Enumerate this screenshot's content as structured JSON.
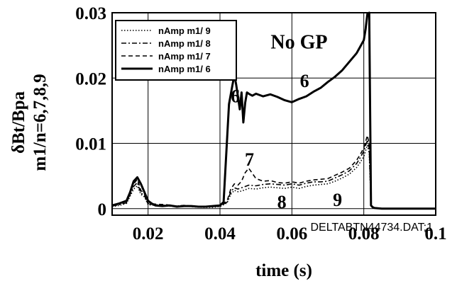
{
  "chart_data": {
    "type": "line",
    "title": "",
    "xlabel": "time (s)",
    "ylabel_lines": [
      "δBt/Bpa",
      "m1/n=6,7,8,9"
    ],
    "xlim": [
      0.01,
      0.1
    ],
    "ylim": [
      -0.001,
      0.03
    ],
    "x_ticks": [
      0.02,
      0.04,
      0.06,
      0.08,
      0.1
    ],
    "x_tick_labels": [
      "0.02",
      "0.04",
      "0.06",
      "0.08",
      "0.1"
    ],
    "y_ticks": [
      0,
      0.01,
      0.02,
      0.03
    ],
    "y_tick_labels": [
      "0",
      "0.01",
      "0.02",
      "0.03"
    ],
    "grid": true,
    "legend_position": "top-left",
    "annotations": [
      {
        "text": "No GP",
        "x": 0.062,
        "y": 0.0245,
        "size": "large"
      },
      {
        "text": "6",
        "x": 0.0635,
        "y": 0.0186
      },
      {
        "text": "6",
        "x": 0.0443,
        "y": 0.0163
      },
      {
        "text": "7",
        "x": 0.0482,
        "y": 0.0066
      },
      {
        "text": "8",
        "x": 0.0572,
        "y": 0.0001
      },
      {
        "text": "9",
        "x": 0.0727,
        "y": 0.0004
      }
    ],
    "footer_label": "DELTABTN44734.DAT;1",
    "series": [
      {
        "name": "nAmp m1/ 9",
        "style": "dotted",
        "x": [
          0.01,
          0.012,
          0.014,
          0.016,
          0.017,
          0.018,
          0.019,
          0.02,
          0.022,
          0.025,
          0.028,
          0.03,
          0.032,
          0.035,
          0.038,
          0.04,
          0.042,
          0.043,
          0.044,
          0.045,
          0.046,
          0.048,
          0.05,
          0.052,
          0.054,
          0.056,
          0.058,
          0.06,
          0.062,
          0.064,
          0.066,
          0.068,
          0.07,
          0.072,
          0.074,
          0.076,
          0.078,
          0.079,
          0.08,
          0.081,
          0.0815,
          0.082,
          0.083,
          0.085,
          0.09,
          0.095,
          0.1
        ],
        "y": [
          0.0003,
          0.0005,
          0.0008,
          0.003,
          0.0035,
          0.0022,
          0.0018,
          0.0006,
          0.0005,
          0.0004,
          0.0003,
          0.0004,
          0.0003,
          0.0002,
          0.0002,
          0.0003,
          0.0009,
          0.0022,
          0.0028,
          0.0026,
          0.0027,
          0.0031,
          0.003,
          0.0032,
          0.0033,
          0.0032,
          0.0031,
          0.0033,
          0.0031,
          0.0034,
          0.0036,
          0.0037,
          0.0038,
          0.0042,
          0.0047,
          0.0053,
          0.0063,
          0.0071,
          0.008,
          0.0097,
          0.0085,
          0.0005,
          0.0001,
          0.0,
          0.0,
          0.0,
          0.0
        ]
      },
      {
        "name": "nAmp m1/ 8",
        "style": "dashdot",
        "x": [
          0.01,
          0.012,
          0.014,
          0.016,
          0.017,
          0.018,
          0.019,
          0.02,
          0.022,
          0.025,
          0.028,
          0.03,
          0.032,
          0.035,
          0.038,
          0.04,
          0.042,
          0.043,
          0.044,
          0.045,
          0.046,
          0.048,
          0.05,
          0.052,
          0.054,
          0.056,
          0.058,
          0.06,
          0.062,
          0.064,
          0.066,
          0.068,
          0.07,
          0.072,
          0.074,
          0.076,
          0.078,
          0.079,
          0.08,
          0.081,
          0.0815,
          0.082,
          0.083,
          0.085,
          0.09,
          0.095,
          0.1
        ],
        "y": [
          0.0004,
          0.0006,
          0.0009,
          0.0034,
          0.004,
          0.0024,
          0.002,
          0.0007,
          0.0006,
          0.0005,
          0.0004,
          0.0005,
          0.0003,
          0.0003,
          0.0003,
          0.0004,
          0.001,
          0.0026,
          0.0032,
          0.003,
          0.0032,
          0.0036,
          0.0035,
          0.0037,
          0.0038,
          0.0037,
          0.0036,
          0.0038,
          0.0036,
          0.0039,
          0.0041,
          0.0041,
          0.0042,
          0.0047,
          0.0052,
          0.0058,
          0.0069,
          0.0078,
          0.0088,
          0.0105,
          0.0092,
          0.0005,
          0.0001,
          0.0,
          0.0,
          0.0,
          0.0
        ]
      },
      {
        "name": "nAmp m1/ 7",
        "style": "dashed",
        "x": [
          0.01,
          0.012,
          0.014,
          0.016,
          0.017,
          0.018,
          0.019,
          0.02,
          0.022,
          0.025,
          0.028,
          0.03,
          0.032,
          0.035,
          0.038,
          0.04,
          0.042,
          0.043,
          0.044,
          0.045,
          0.046,
          0.047,
          0.048,
          0.05,
          0.052,
          0.054,
          0.056,
          0.058,
          0.06,
          0.062,
          0.064,
          0.066,
          0.068,
          0.07,
          0.072,
          0.074,
          0.076,
          0.078,
          0.079,
          0.08,
          0.081,
          0.0815,
          0.082,
          0.083,
          0.085,
          0.09,
          0.095,
          0.1
        ],
        "y": [
          0.0005,
          0.0008,
          0.001,
          0.0038,
          0.0045,
          0.0028,
          0.0022,
          0.0008,
          0.0007,
          0.0006,
          0.0004,
          0.0005,
          0.0004,
          0.0003,
          0.0003,
          0.0004,
          0.0012,
          0.003,
          0.0038,
          0.0036,
          0.0042,
          0.0055,
          0.0062,
          0.0046,
          0.0042,
          0.0043,
          0.004,
          0.0039,
          0.0041,
          0.0039,
          0.0042,
          0.0044,
          0.0045,
          0.0046,
          0.0051,
          0.0056,
          0.0062,
          0.0074,
          0.0083,
          0.0093,
          0.0112,
          0.0098,
          0.0005,
          0.0001,
          0.0,
          0.0,
          0.0,
          0.0
        ]
      },
      {
        "name": "nAmp m1/ 6",
        "style": "solid",
        "x": [
          0.01,
          0.012,
          0.014,
          0.015,
          0.016,
          0.017,
          0.018,
          0.019,
          0.02,
          0.021,
          0.022,
          0.024,
          0.026,
          0.028,
          0.03,
          0.032,
          0.034,
          0.036,
          0.038,
          0.04,
          0.041,
          0.0425,
          0.043,
          0.0435,
          0.044,
          0.0445,
          0.045,
          0.0455,
          0.046,
          0.0465,
          0.047,
          0.0475,
          0.048,
          0.049,
          0.05,
          0.052,
          0.054,
          0.056,
          0.058,
          0.06,
          0.062,
          0.064,
          0.066,
          0.068,
          0.07,
          0.072,
          0.074,
          0.076,
          0.078,
          0.079,
          0.08,
          0.0805,
          0.081,
          0.0815,
          0.082,
          0.0825,
          0.083,
          0.085,
          0.09,
          0.095,
          0.1
        ],
        "y": [
          0.0005,
          0.0008,
          0.0012,
          0.0025,
          0.0042,
          0.0048,
          0.0038,
          0.0025,
          0.0012,
          0.0008,
          0.0005,
          0.0004,
          0.0005,
          0.0003,
          0.0004,
          0.0004,
          0.0003,
          0.0003,
          0.0004,
          0.0005,
          0.001,
          0.016,
          0.0175,
          0.019,
          0.0205,
          0.019,
          0.0172,
          0.0152,
          0.0178,
          0.0132,
          0.0162,
          0.0178,
          0.0176,
          0.0173,
          0.0176,
          0.0172,
          0.0175,
          0.0171,
          0.0166,
          0.0163,
          0.0168,
          0.0172,
          0.0179,
          0.0185,
          0.0194,
          0.0202,
          0.0212,
          0.0225,
          0.0238,
          0.0248,
          0.0258,
          0.0275,
          0.0298,
          0.031,
          0.0005,
          0.0002,
          0.0001,
          0.0,
          0.0,
          0.0,
          0.0
        ]
      }
    ]
  }
}
